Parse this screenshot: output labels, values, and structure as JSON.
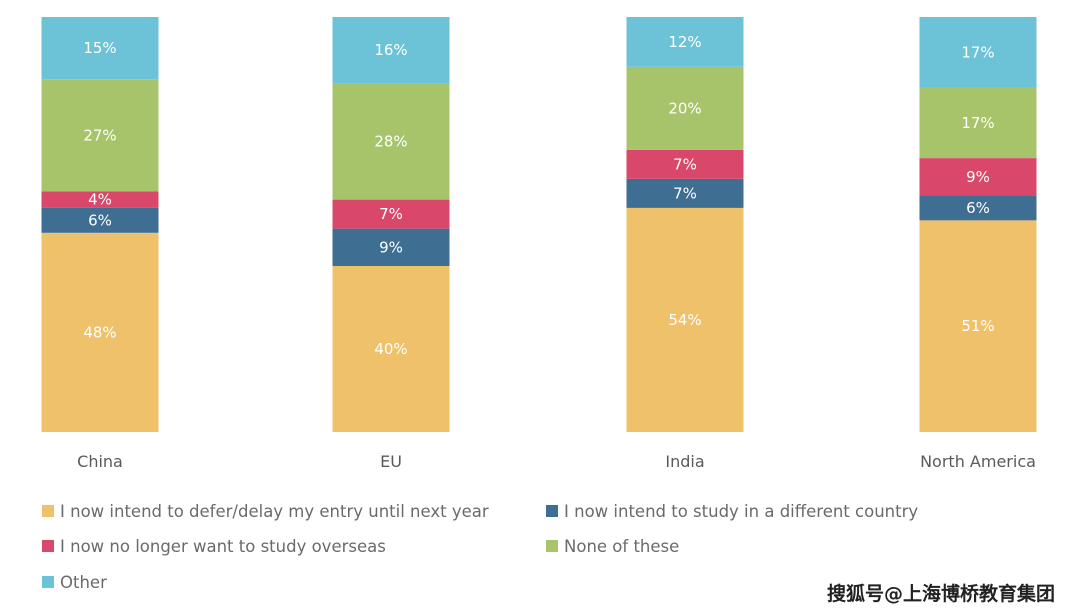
{
  "chart_data": {
    "type": "bar",
    "stacked": true,
    "percent": true,
    "categories": [
      "China",
      "EU",
      "India",
      "North America"
    ],
    "series": [
      {
        "key": "defer",
        "name": "I now intend to defer/delay my entry until next year",
        "color": "#f0c16b",
        "values": [
          48,
          40,
          54,
          51
        ]
      },
      {
        "key": "different_country",
        "name": "I now intend to study in a different country",
        "color": "#3f6e93",
        "values": [
          6,
          9,
          7,
          6
        ]
      },
      {
        "key": "no_longer",
        "name": "I now no longer want to study overseas",
        "color": "#d9486a",
        "values": [
          4,
          7,
          7,
          9
        ]
      },
      {
        "key": "none",
        "name": "None of these",
        "color": "#a8c46b",
        "values": [
          27,
          28,
          20,
          17
        ]
      },
      {
        "key": "other",
        "name": "Other",
        "color": "#6cc3d8",
        "values": [
          15,
          16,
          12,
          17
        ]
      }
    ],
    "legend_order": [
      "defer",
      "different_country",
      "no_longer",
      "none",
      "other"
    ],
    "ylim": [
      0,
      100
    ],
    "title": "",
    "xlabel": "",
    "ylabel": ""
  },
  "watermark": "搜狐号@上海博桥教育集团"
}
